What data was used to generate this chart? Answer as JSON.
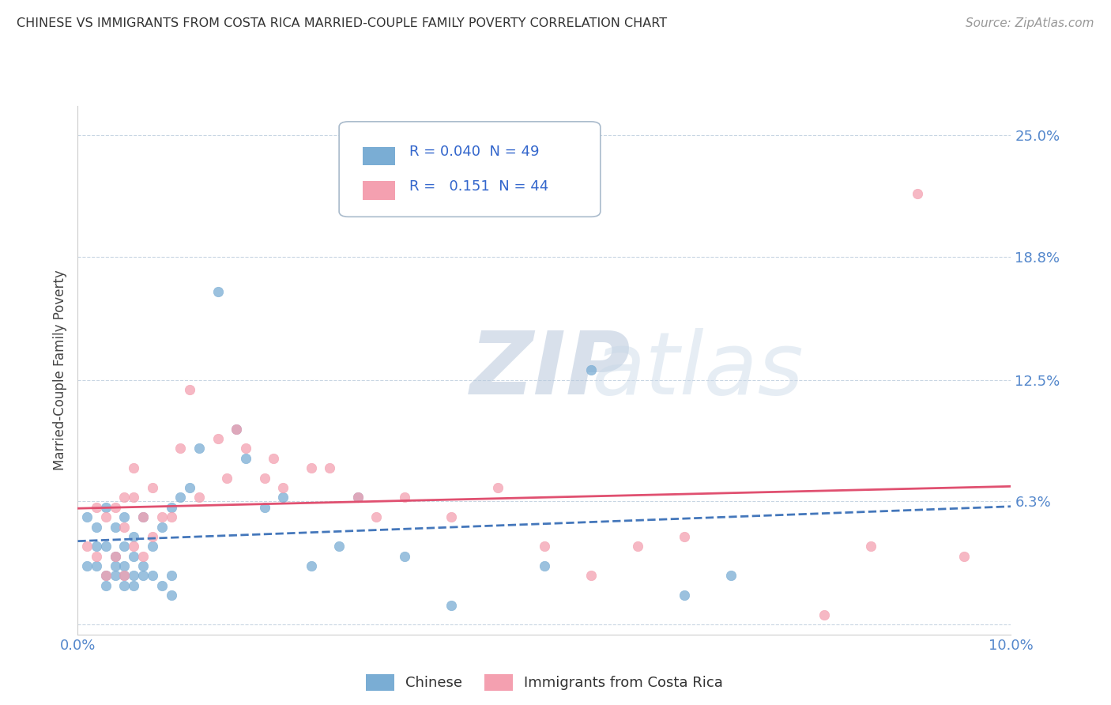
{
  "title": "CHINESE VS IMMIGRANTS FROM COSTA RICA MARRIED-COUPLE FAMILY POVERTY CORRELATION CHART",
  "source": "Source: ZipAtlas.com",
  "ylabel": "Married-Couple Family Poverty",
  "xlim": [
    0.0,
    0.1
  ],
  "ylim": [
    -0.005,
    0.265
  ],
  "ytick_vals": [
    0.0,
    0.063,
    0.125,
    0.188,
    0.25
  ],
  "ytick_labels": [
    "",
    "6.3%",
    "12.5%",
    "18.8%",
    "25.0%"
  ],
  "xtick_vals": [
    0.0,
    0.01,
    0.02,
    0.03,
    0.04,
    0.05,
    0.06,
    0.07,
    0.08,
    0.09,
    0.1
  ],
  "xtick_labels": [
    "0.0%",
    "",
    "",
    "",
    "",
    "",
    "",
    "",
    "",
    "",
    "10.0%"
  ],
  "legend_r_blue": "0.040",
  "legend_n_blue": "49",
  "legend_r_pink": "0.151",
  "legend_n_pink": "44",
  "color_blue": "#7aadd4",
  "color_pink": "#f4a0b0",
  "color_blue_line": "#4477BB",
  "color_pink_line": "#E05070",
  "blue_x": [
    0.001,
    0.001,
    0.002,
    0.002,
    0.002,
    0.003,
    0.003,
    0.003,
    0.003,
    0.004,
    0.004,
    0.004,
    0.004,
    0.005,
    0.005,
    0.005,
    0.005,
    0.005,
    0.006,
    0.006,
    0.006,
    0.006,
    0.007,
    0.007,
    0.007,
    0.008,
    0.008,
    0.009,
    0.009,
    0.01,
    0.01,
    0.01,
    0.011,
    0.012,
    0.013,
    0.015,
    0.017,
    0.018,
    0.02,
    0.022,
    0.025,
    0.028,
    0.03,
    0.035,
    0.04,
    0.05,
    0.055,
    0.065,
    0.07
  ],
  "blue_y": [
    0.03,
    0.055,
    0.03,
    0.04,
    0.05,
    0.02,
    0.025,
    0.04,
    0.06,
    0.025,
    0.03,
    0.035,
    0.05,
    0.02,
    0.025,
    0.03,
    0.04,
    0.055,
    0.02,
    0.025,
    0.035,
    0.045,
    0.025,
    0.03,
    0.055,
    0.025,
    0.04,
    0.02,
    0.05,
    0.015,
    0.025,
    0.06,
    0.065,
    0.07,
    0.09,
    0.17,
    0.1,
    0.085,
    0.06,
    0.065,
    0.03,
    0.04,
    0.065,
    0.035,
    0.01,
    0.03,
    0.13,
    0.015,
    0.025
  ],
  "pink_x": [
    0.001,
    0.002,
    0.002,
    0.003,
    0.003,
    0.004,
    0.004,
    0.005,
    0.005,
    0.005,
    0.006,
    0.006,
    0.006,
    0.007,
    0.007,
    0.008,
    0.008,
    0.009,
    0.01,
    0.011,
    0.012,
    0.013,
    0.015,
    0.016,
    0.017,
    0.018,
    0.02,
    0.021,
    0.022,
    0.025,
    0.027,
    0.03,
    0.032,
    0.035,
    0.04,
    0.045,
    0.05,
    0.055,
    0.06,
    0.065,
    0.08,
    0.085,
    0.09,
    0.095
  ],
  "pink_y": [
    0.04,
    0.035,
    0.06,
    0.025,
    0.055,
    0.035,
    0.06,
    0.025,
    0.05,
    0.065,
    0.04,
    0.065,
    0.08,
    0.035,
    0.055,
    0.045,
    0.07,
    0.055,
    0.055,
    0.09,
    0.12,
    0.065,
    0.095,
    0.075,
    0.1,
    0.09,
    0.075,
    0.085,
    0.07,
    0.08,
    0.08,
    0.065,
    0.055,
    0.065,
    0.055,
    0.07,
    0.04,
    0.025,
    0.04,
    0.045,
    0.005,
    0.04,
    0.22,
    0.035
  ]
}
